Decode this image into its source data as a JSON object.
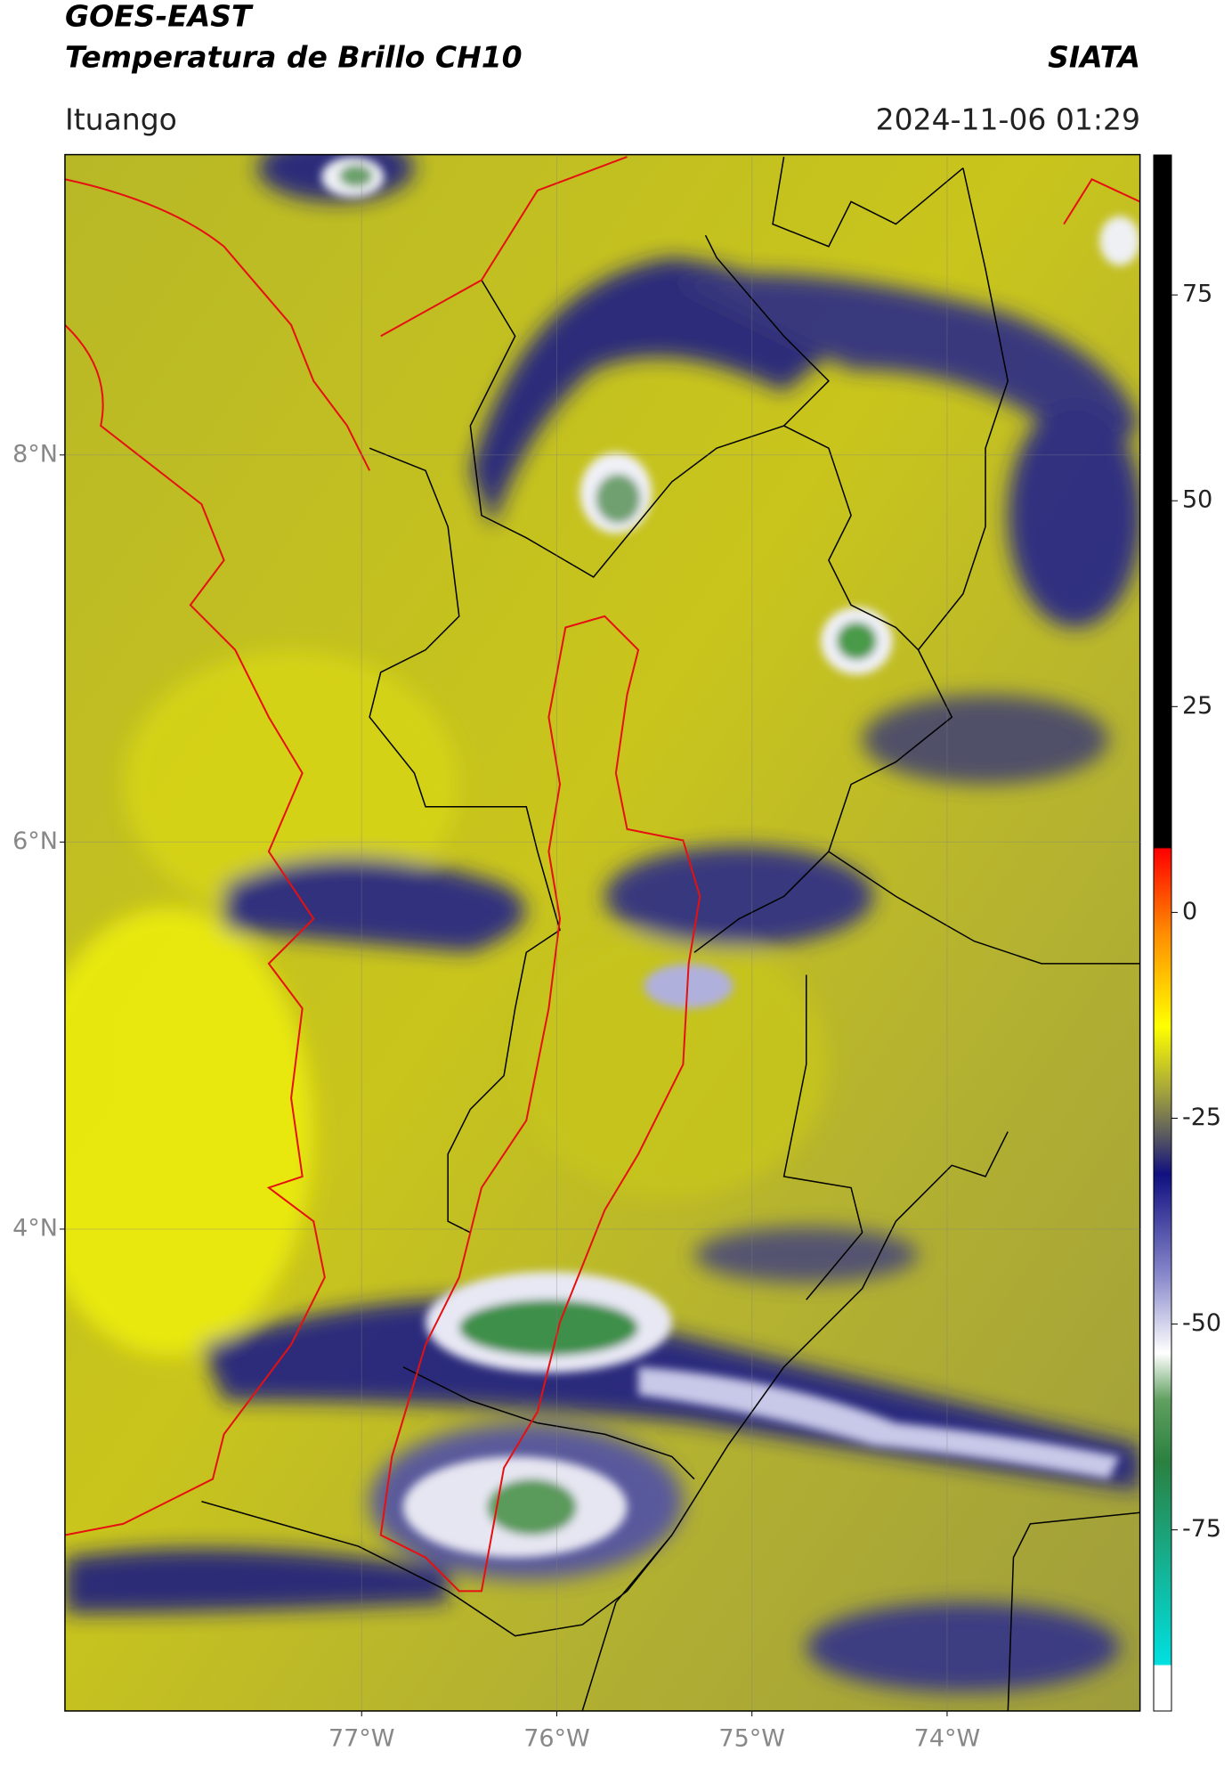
{
  "header": {
    "title": "GOES-EAST",
    "subtitle": "Temperatura de Brillo CH10",
    "source": "SIATA",
    "location": "Ituango",
    "timestamp": "2024-11-06 01:29"
  },
  "map": {
    "lat_range": [
      1.51,
      9.55
    ],
    "lon_range": [
      -78.52,
      -73.01
    ],
    "lat_ticks": [
      {
        "value": 4,
        "label": "4°N"
      },
      {
        "value": 6,
        "label": "6°N"
      },
      {
        "value": 8,
        "label": "8°N"
      }
    ],
    "lon_ticks": [
      {
        "value": -77,
        "label": "77°W"
      },
      {
        "value": -76,
        "label": "76°W"
      },
      {
        "value": -75,
        "label": "75°W"
      },
      {
        "value": -74,
        "label": "74°W"
      }
    ]
  },
  "colorbar": {
    "range": [
      -97,
      92
    ],
    "ticks": [
      75,
      50,
      25,
      0,
      -25,
      -50,
      -75
    ]
  }
}
